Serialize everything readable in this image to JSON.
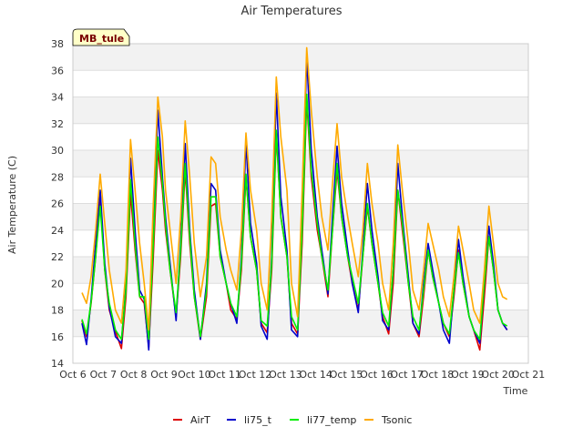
{
  "chart_data": {
    "type": "line",
    "title": "Air Temperatures",
    "xlabel": "Time",
    "ylabel": "Air Temperature (C)",
    "badge": "MB_tule",
    "xlim": [
      6,
      21
    ],
    "ylim": [
      14,
      38
    ],
    "x_tick_labels": [
      "Oct 6",
      "Oct 7",
      "Oct 8",
      "Oct 9",
      "Oct 10",
      "Oct 11",
      "Oct 12",
      "Oct 13",
      "Oct 14",
      "Oct 15",
      "Oct 16",
      "Oct 17",
      "Oct 18",
      "Oct 19",
      "Oct 20",
      "Oct 21"
    ],
    "y_ticks": [
      14,
      16,
      18,
      20,
      22,
      24,
      26,
      28,
      30,
      32,
      34,
      36,
      38
    ],
    "grid": true,
    "legend_placement": "bottom",
    "series": [
      {
        "name": "AirT",
        "color": "#dd0000",
        "x": [
          6.3,
          6.45,
          6.6,
          6.75,
          6.9,
          7.05,
          7.2,
          7.4,
          7.6,
          7.75,
          7.9,
          8.05,
          8.2,
          8.35,
          8.5,
          8.65,
          8.8,
          8.95,
          9.05,
          9.2,
          9.4,
          9.55,
          9.7,
          9.85,
          10.0,
          10.2,
          10.4,
          10.55,
          10.7,
          10.85,
          11.05,
          11.2,
          11.4,
          11.55,
          11.7,
          11.85,
          12.05,
          12.2,
          12.4,
          12.55,
          12.7,
          12.85,
          13.05,
          13.2,
          13.4,
          13.55,
          13.7,
          13.85,
          14.05,
          14.2,
          14.4,
          14.55,
          14.7,
          14.85,
          15.05,
          15.2,
          15.4,
          15.55,
          15.7,
          15.85,
          16.05,
          16.2,
          16.4,
          16.55,
          16.7,
          16.85,
          17.05,
          17.2,
          17.4,
          17.55,
          17.7,
          17.85,
          18.05,
          18.2,
          18.4,
          18.55,
          18.7,
          18.85,
          19.05,
          19.2,
          19.4,
          19.55,
          19.7,
          19.85,
          20.0,
          20.15,
          20.3
        ],
        "y": [
          17.2,
          16.0,
          18.5,
          22.0,
          26.6,
          21.0,
          18.0,
          16.4,
          15.1,
          19.0,
          26.8,
          22.5,
          19.0,
          18.5,
          15.2,
          22.0,
          30.0,
          27.0,
          24.0,
          21.0,
          17.5,
          22.0,
          28.5,
          23.0,
          19.0,
          15.8,
          19.0,
          25.8,
          26.0,
          22.0,
          20.0,
          18.0,
          17.3,
          21.0,
          28.0,
          23.5,
          21.0,
          17.0,
          16.3,
          21.0,
          31.3,
          25.0,
          22.0,
          17.0,
          16.2,
          23.0,
          33.8,
          28.0,
          24.0,
          22.0,
          19.0,
          24.0,
          28.5,
          25.0,
          22.0,
          20.0,
          18.0,
          22.0,
          25.8,
          23.0,
          20.0,
          17.5,
          16.2,
          20.0,
          27.0,
          24.0,
          20.0,
          17.0,
          16.0,
          19.0,
          22.5,
          20.5,
          18.5,
          17.0,
          16.0,
          19.0,
          22.5,
          20.0,
          17.5,
          16.5,
          15.0,
          19.0,
          23.5,
          21.0,
          18.0,
          17.0,
          16.5
        ]
      },
      {
        "name": "li75_t",
        "color": "#0000cc",
        "x": [
          6.3,
          6.45,
          6.6,
          6.75,
          6.9,
          7.05,
          7.2,
          7.4,
          7.6,
          7.75,
          7.9,
          8.05,
          8.2,
          8.35,
          8.5,
          8.65,
          8.8,
          8.95,
          9.05,
          9.2,
          9.4,
          9.55,
          9.7,
          9.85,
          10.0,
          10.2,
          10.4,
          10.55,
          10.7,
          10.85,
          11.05,
          11.2,
          11.4,
          11.55,
          11.7,
          11.85,
          12.05,
          12.2,
          12.4,
          12.55,
          12.7,
          12.85,
          13.05,
          13.2,
          13.4,
          13.55,
          13.7,
          13.85,
          14.05,
          14.2,
          14.4,
          14.55,
          14.7,
          14.85,
          15.05,
          15.2,
          15.4,
          15.55,
          15.7,
          15.85,
          16.05,
          16.2,
          16.4,
          16.55,
          16.7,
          16.85,
          17.05,
          17.2,
          17.4,
          17.55,
          17.7,
          17.85,
          18.05,
          18.2,
          18.4,
          18.55,
          18.7,
          18.85,
          19.05,
          19.2,
          19.4,
          19.55,
          19.7,
          19.85,
          20.0,
          20.15,
          20.3
        ],
        "y": [
          17.0,
          15.4,
          18.8,
          23.0,
          27.0,
          21.5,
          18.2,
          16.0,
          15.5,
          20.0,
          29.4,
          24.0,
          19.5,
          18.8,
          15.0,
          24.0,
          33.0,
          28.0,
          25.0,
          21.5,
          17.2,
          23.0,
          30.5,
          24.0,
          19.5,
          15.8,
          20.0,
          27.5,
          27.0,
          22.5,
          20.0,
          18.5,
          17.0,
          22.0,
          30.6,
          24.5,
          21.5,
          16.8,
          15.8,
          22.0,
          34.3,
          26.5,
          22.5,
          16.5,
          16.0,
          25.0,
          37.0,
          30.0,
          25.0,
          22.5,
          19.2,
          25.0,
          30.3,
          26.0,
          22.5,
          20.0,
          17.8,
          22.5,
          27.5,
          24.0,
          20.5,
          17.2,
          16.5,
          21.0,
          29.0,
          25.0,
          20.5,
          17.0,
          16.2,
          20.0,
          23.0,
          21.0,
          18.5,
          16.5,
          15.5,
          19.5,
          23.3,
          20.5,
          17.5,
          16.5,
          15.5,
          20.0,
          24.3,
          21.5,
          18.0,
          17.0,
          16.5
        ]
      },
      {
        "name": "li77_temp",
        "color": "#00ee00",
        "x": [
          6.3,
          6.45,
          6.6,
          6.75,
          6.9,
          7.05,
          7.2,
          7.4,
          7.6,
          7.75,
          7.9,
          8.05,
          8.2,
          8.35,
          8.5,
          8.65,
          8.8,
          8.95,
          9.05,
          9.2,
          9.4,
          9.55,
          9.7,
          9.85,
          10.0,
          10.2,
          10.4,
          10.55,
          10.7,
          10.85,
          11.05,
          11.2,
          11.4,
          11.55,
          11.7,
          11.85,
          12.05,
          12.2,
          12.4,
          12.55,
          12.7,
          12.85,
          13.05,
          13.2,
          13.4,
          13.55,
          13.7,
          13.85,
          14.05,
          14.2,
          14.4,
          14.55,
          14.7,
          14.85,
          15.05,
          15.2,
          15.4,
          15.55,
          15.7,
          15.85,
          16.05,
          16.2,
          16.4,
          16.55,
          16.7,
          16.85,
          17.05,
          17.2,
          17.4,
          17.55,
          17.7,
          17.85,
          18.05,
          18.2,
          18.4,
          18.55,
          18.7,
          18.85,
          19.05,
          19.2,
          19.4,
          19.55,
          19.7,
          19.85,
          20.0,
          20.15,
          20.3
        ],
        "y": [
          17.3,
          16.2,
          18.6,
          22.0,
          25.8,
          21.0,
          18.5,
          16.5,
          15.8,
          19.5,
          27.8,
          23.0,
          19.0,
          19.0,
          15.8,
          23.0,
          31.0,
          27.5,
          24.5,
          21.0,
          17.8,
          22.5,
          29.0,
          23.5,
          19.0,
          16.0,
          19.5,
          26.5,
          26.5,
          22.0,
          20.0,
          18.5,
          17.5,
          21.5,
          28.2,
          23.5,
          21.0,
          17.2,
          16.8,
          21.5,
          31.5,
          25.0,
          22.0,
          17.5,
          16.5,
          24.0,
          34.2,
          28.5,
          24.5,
          22.0,
          19.5,
          24.0,
          29.0,
          25.0,
          22.0,
          20.5,
          18.5,
          22.0,
          26.0,
          23.0,
          20.0,
          17.8,
          16.8,
          21.0,
          27.0,
          24.5,
          20.0,
          17.5,
          16.5,
          19.5,
          22.5,
          20.5,
          18.5,
          17.0,
          16.2,
          19.5,
          22.3,
          20.0,
          17.5,
          16.5,
          15.8,
          20.0,
          23.5,
          21.0,
          18.0,
          17.0,
          16.8
        ]
      },
      {
        "name": "Tsonic",
        "color": "#ffaa00",
        "x": [
          6.3,
          6.45,
          6.6,
          6.75,
          6.9,
          7.05,
          7.2,
          7.4,
          7.6,
          7.75,
          7.9,
          8.05,
          8.2,
          8.35,
          8.5,
          8.65,
          8.8,
          8.95,
          9.05,
          9.2,
          9.4,
          9.55,
          9.7,
          9.85,
          10.0,
          10.2,
          10.4,
          10.55,
          10.7,
          10.85,
          11.05,
          11.2,
          11.4,
          11.55,
          11.7,
          11.85,
          12.05,
          12.2,
          12.4,
          12.55,
          12.7,
          12.85,
          13.05,
          13.2,
          13.4,
          13.55,
          13.7,
          13.85,
          14.05,
          14.2,
          14.4,
          14.55,
          14.7,
          14.85,
          15.05,
          15.2,
          15.4,
          15.55,
          15.7,
          15.85,
          16.05,
          16.2,
          16.4,
          16.55,
          16.7,
          16.85,
          17.05,
          17.2,
          17.4,
          17.55,
          17.7,
          17.85,
          18.05,
          18.2,
          18.4,
          18.55,
          18.7,
          18.85,
          19.05,
          19.2,
          19.4,
          19.55,
          19.7,
          19.85,
          20.0,
          20.15,
          20.3
        ],
        "y": [
          19.3,
          18.5,
          20.5,
          24.0,
          28.2,
          24.5,
          21.0,
          18.0,
          17.0,
          21.0,
          30.8,
          27.0,
          23.0,
          20.0,
          16.5,
          26.0,
          34.0,
          31.0,
          27.0,
          24.0,
          20.0,
          25.0,
          32.2,
          28.0,
          23.0,
          19.0,
          22.0,
          29.5,
          29.0,
          25.0,
          22.5,
          21.0,
          19.5,
          24.0,
          31.3,
          27.0,
          24.0,
          20.0,
          18.0,
          25.0,
          35.5,
          31.0,
          27.0,
          20.0,
          17.5,
          27.0,
          37.7,
          33.0,
          28.0,
          25.0,
          22.5,
          27.5,
          32.0,
          28.0,
          25.0,
          23.0,
          20.5,
          24.0,
          29.0,
          26.0,
          23.0,
          20.0,
          18.0,
          23.0,
          30.4,
          27.0,
          23.0,
          19.5,
          18.0,
          21.0,
          24.5,
          23.0,
          21.0,
          19.0,
          17.5,
          20.5,
          24.3,
          22.5,
          20.0,
          18.0,
          17.0,
          21.0,
          25.8,
          23.0,
          20.0,
          19.0,
          18.8
        ]
      }
    ]
  }
}
